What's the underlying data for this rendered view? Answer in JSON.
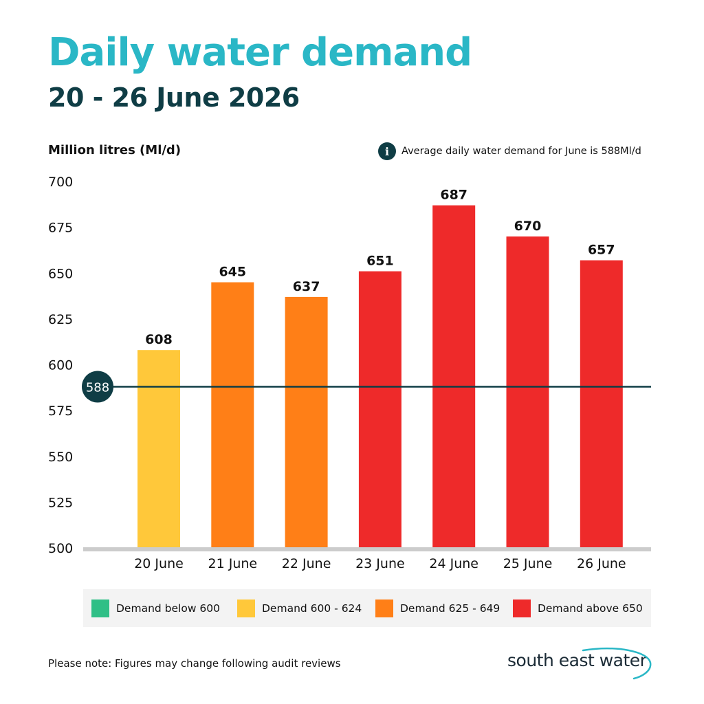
{
  "title": "Daily water demand",
  "subtitle": "20 - 26 June 2026",
  "average_note": "Average daily water demand for June is 588Ml/d",
  "info_icon": "info-icon",
  "legend": [
    {
      "label": "Demand below 600",
      "color": "#2fbf86"
    },
    {
      "label": "Demand 600 - 624",
      "color": "#ffc83a"
    },
    {
      "label": "Demand 625 - 649",
      "color": "#ff7f17"
    },
    {
      "label": "Demand above 650",
      "color": "#ee2a2a"
    }
  ],
  "footnote": "Please note: Figures may change following audit reviews",
  "logo_text": "south east water",
  "colors": {
    "title": "#2ab7c6",
    "dark": "#0f3d45",
    "axis": "#cccccc",
    "legend_bg": "#f3f3f3"
  },
  "chart_data": {
    "type": "bar",
    "ylabel": "Million litres (Ml/d)",
    "categories": [
      "20 June",
      "21 June",
      "22 June",
      "23 June",
      "24 June",
      "25 June",
      "26 June"
    ],
    "values": [
      608,
      645,
      637,
      651,
      687,
      670,
      657
    ],
    "bar_colors": [
      "#ffc83a",
      "#ff7f17",
      "#ff7f17",
      "#ee2a2a",
      "#ee2a2a",
      "#ee2a2a",
      "#ee2a2a"
    ],
    "ylim": [
      500,
      700
    ],
    "yticks": [
      "500",
      "525",
      "550",
      "575",
      "600",
      "625",
      "650",
      "675",
      "700"
    ],
    "reference_line": {
      "value": 588,
      "label": "588",
      "color": "#0f3d45"
    },
    "grid": false,
    "data_labels": true
  }
}
